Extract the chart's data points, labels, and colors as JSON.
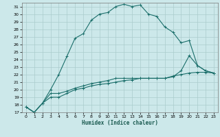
{
  "xlabel": "Humidex (Indice chaleur)",
  "bg_color": "#cce8ea",
  "grid_color": "#aacccc",
  "line_color": "#1a6e6a",
  "xlim": [
    -0.5,
    23.5
  ],
  "ylim": [
    17,
    31.5
  ],
  "xticks": [
    0,
    1,
    2,
    3,
    4,
    5,
    6,
    7,
    8,
    9,
    10,
    11,
    12,
    13,
    14,
    15,
    16,
    17,
    18,
    19,
    20,
    21,
    22,
    23
  ],
  "yticks": [
    17,
    18,
    19,
    20,
    21,
    22,
    23,
    24,
    25,
    26,
    27,
    28,
    29,
    30,
    31
  ],
  "line1_x": [
    0,
    1,
    2,
    3,
    4,
    5,
    6,
    7,
    8,
    9,
    10,
    11,
    12,
    13,
    14,
    15,
    16,
    17,
    18,
    19,
    20,
    21,
    22,
    23
  ],
  "line1_y": [
    17.7,
    17.0,
    18.2,
    20.0,
    22.0,
    24.4,
    26.8,
    27.4,
    29.2,
    30.0,
    30.2,
    31.0,
    31.3,
    31.0,
    31.2,
    30.0,
    29.7,
    28.3,
    27.6,
    26.2,
    26.5,
    23.2,
    22.5,
    22.2
  ],
  "line2_x": [
    0,
    1,
    2,
    3,
    4,
    5,
    6,
    7,
    8,
    9,
    10,
    11,
    12,
    13,
    14,
    15,
    16,
    17,
    18,
    19,
    20,
    21,
    22,
    23
  ],
  "line2_y": [
    17.7,
    17.0,
    18.2,
    19.0,
    19.0,
    19.5,
    20.0,
    20.2,
    20.5,
    20.7,
    20.8,
    21.0,
    21.2,
    21.3,
    21.5,
    21.5,
    21.5,
    21.5,
    21.8,
    22.0,
    22.2,
    22.3,
    22.3,
    22.2
  ],
  "line3_x": [
    0,
    1,
    2,
    3,
    4,
    5,
    6,
    7,
    8,
    9,
    10,
    11,
    12,
    13,
    14,
    15,
    16,
    17,
    18,
    19,
    20,
    21,
    22,
    23
  ],
  "line3_y": [
    17.7,
    17.0,
    18.2,
    19.5,
    19.5,
    19.8,
    20.2,
    20.5,
    20.8,
    21.0,
    21.2,
    21.5,
    21.5,
    21.5,
    21.5,
    21.5,
    21.5,
    21.5,
    21.7,
    22.5,
    24.5,
    23.2,
    22.5,
    22.2
  ],
  "xlabel_fontsize": 5.5,
  "tick_fontsize": 4.5,
  "linewidth": 0.8,
  "markersize": 3.0
}
